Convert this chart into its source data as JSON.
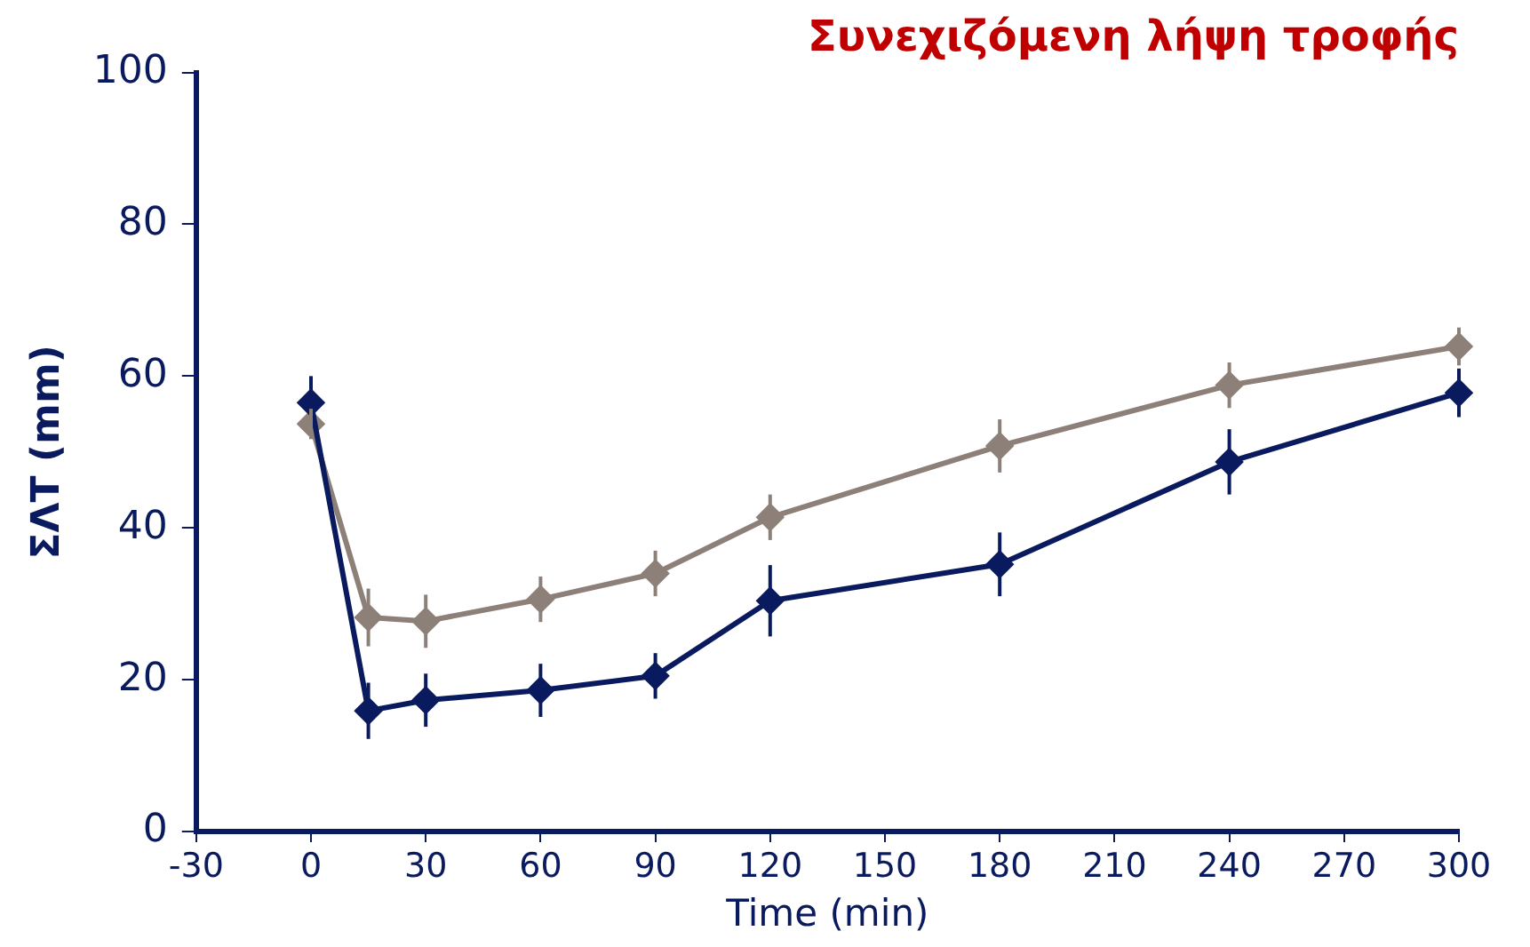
{
  "chart_data": {
    "type": "line",
    "title": "Συνεχιζόμενη λήψη τροφής",
    "xlabel": "Time (min)",
    "ylabel": "ΣΛΤ (mm)",
    "x": [
      0,
      15,
      30,
      60,
      90,
      120,
      180,
      240,
      300
    ],
    "series": [
      {
        "color": "#0a1a5e",
        "values": [
          56.5,
          15.9,
          17.3,
          18.6,
          20.5,
          30.4,
          35.2,
          48.7,
          57.8
        ],
        "errors": [
          3.5,
          3.7,
          3.5,
          3.5,
          3,
          4.7,
          4.2,
          4.3,
          3.2
        ]
      },
      {
        "color": "#8c8079",
        "values": [
          53.7,
          28.2,
          27.7,
          30.6,
          34,
          41.4,
          50.8,
          58.8,
          63.9
        ],
        "errors": [
          2,
          3.8,
          3.5,
          3,
          3,
          3,
          3.5,
          3,
          2.5
        ]
      }
    ],
    "xlim": [
      -30,
      300
    ],
    "xticks": [
      -30,
      0,
      30,
      60,
      90,
      120,
      150,
      180,
      210,
      240,
      270,
      300
    ],
    "ylim": [
      0,
      100
    ],
    "yticks": [
      0,
      20,
      40,
      60,
      80,
      100
    ],
    "grid": false,
    "legend": false,
    "marker": "diamond",
    "line_style": "solid"
  }
}
